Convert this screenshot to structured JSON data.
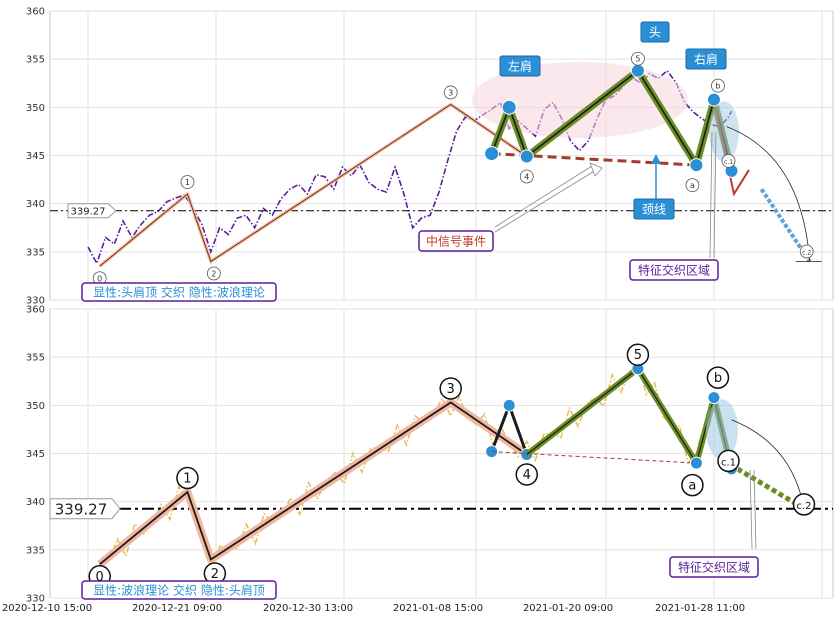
{
  "chart_data": [
    {
      "type": "line",
      "panel": "top",
      "ylim": [
        330,
        360
      ],
      "yticks": [
        330,
        335,
        340,
        345,
        350,
        355,
        360
      ],
      "series": [],
      "price_path": [
        [
          0,
          335.5
        ],
        [
          1.5,
          333.8
        ],
        [
          3,
          336.5
        ],
        [
          4.5,
          335.8
        ],
        [
          6,
          338.2
        ],
        [
          7.5,
          336.5
        ],
        [
          9,
          337.8
        ],
        [
          10.5,
          338.8
        ],
        [
          12,
          339.2
        ],
        [
          13.5,
          340.2
        ],
        [
          15,
          340.6
        ],
        [
          16.5,
          340.9
        ],
        [
          18,
          339.5
        ],
        [
          19.5,
          337.8
        ],
        [
          21,
          335.0
        ],
        [
          22.5,
          337.5
        ],
        [
          24,
          336.8
        ],
        [
          25.5,
          338.5
        ],
        [
          27,
          338.8
        ],
        [
          28.5,
          337.5
        ],
        [
          30,
          339.5
        ],
        [
          31.5,
          338.8
        ],
        [
          33,
          340.5
        ],
        [
          34.5,
          341.5
        ],
        [
          36,
          342.0
        ],
        [
          37.5,
          341.0
        ],
        [
          39,
          343.0
        ],
        [
          40.5,
          342.8
        ],
        [
          42,
          341.5
        ],
        [
          43.5,
          343.8
        ],
        [
          45,
          342.9
        ],
        [
          46.5,
          344.0
        ],
        [
          48,
          342.2
        ],
        [
          49.5,
          341.5
        ],
        [
          51,
          341.2
        ],
        [
          52.5,
          343.8
        ],
        [
          54,
          341.0
        ],
        [
          55.5,
          337.5
        ],
        [
          57,
          338.5
        ],
        [
          58.5,
          338.8
        ],
        [
          60,
          341.2
        ],
        [
          61.5,
          344.5
        ],
        [
          63,
          347.5
        ],
        [
          64.5,
          349.0
        ],
        [
          66,
          348.6
        ],
        [
          67.5,
          349.2
        ],
        [
          69,
          349.8
        ],
        [
          70.5,
          350.5
        ],
        [
          72,
          347.8
        ],
        [
          73.5,
          348.6
        ],
        [
          75,
          347.8
        ],
        [
          76.5,
          347.0
        ],
        [
          78,
          349.8
        ],
        [
          79.5,
          350.5
        ],
        [
          81,
          348.8
        ],
        [
          82.5,
          346.5
        ],
        [
          84,
          345.5
        ],
        [
          85.5,
          346.5
        ],
        [
          87,
          348.8
        ],
        [
          88.5,
          350.8
        ],
        [
          90,
          351.2
        ],
        [
          91.5,
          352.2
        ],
        [
          93,
          353.1
        ],
        [
          94.5,
          352.5
        ],
        [
          96,
          353.5
        ],
        [
          97.5,
          353.0
        ],
        [
          99,
          353.8
        ],
        [
          100.5,
          352.6
        ],
        [
          102,
          350.5
        ],
        [
          103.5,
          349.5
        ],
        [
          105,
          348.8
        ],
        [
          106.5,
          348.2
        ],
        [
          108,
          348.0
        ],
        [
          109.5,
          349.0
        ],
        [
          110,
          349.6
        ]
      ],
      "wave_labels": [
        "0",
        "1",
        "2",
        "3",
        "4",
        "5",
        "a",
        "b",
        "c.1",
        "c.2"
      ],
      "waves": [
        {
          "label": "0",
          "x": 2,
          "y": 333.5
        },
        {
          "label": "1",
          "x": 17,
          "y": 341.0
        },
        {
          "label": "2",
          "x": 21,
          "y": 334.0
        },
        {
          "label": "3",
          "x": 62,
          "y": 350.3
        },
        {
          "label": "4",
          "x": 75,
          "y": 344.9
        },
        {
          "label": "5",
          "x": 94,
          "y": 353.8
        },
        {
          "label": "a",
          "x": 104,
          "y": 344.0
        },
        {
          "label": "b",
          "x": 107,
          "y": 350.8
        },
        {
          "label": "c.1",
          "x": 110,
          "y": 343.4
        },
        {
          "label": "c.2",
          "x": 122,
          "y": 334.0
        }
      ],
      "head_shoulders": {
        "points": [
          [
            69,
            345.2
          ],
          [
            72,
            350.0
          ],
          [
            75,
            344.9
          ],
          [
            94,
            353.8
          ],
          [
            104,
            344.0
          ],
          [
            107,
            350.8
          ],
          [
            110,
            343.4
          ]
        ],
        "neckline": [
          [
            69,
            345.2
          ],
          [
            104,
            344.0
          ]
        ]
      },
      "horizontal_level": 339.27,
      "level_label": "339.27",
      "labels": {
        "left_shoulder": "左肩",
        "head": "头",
        "right_shoulder": "右肩",
        "neckline": "颈线",
        "event": "中信号事件",
        "zone": "特征交织区域",
        "footer": "显性:头肩顶 交织 隐性:波浪理论"
      }
    },
    {
      "type": "line",
      "panel": "bottom",
      "ylim": [
        330,
        360
      ],
      "yticks": [
        330,
        335,
        340,
        345,
        350,
        355,
        360
      ],
      "xticks": [
        "2020-12-10 15:00",
        "2020-12-21 09:00",
        "2020-12-30 13:00",
        "2021-01-08 15:00",
        "2021-01-20 09:00",
        "2021-01-28 11:00"
      ],
      "series": [],
      "waves": [
        {
          "label": "0",
          "x": 2,
          "y": 333.5
        },
        {
          "label": "1",
          "x": 17,
          "y": 341.0
        },
        {
          "label": "2",
          "x": 21,
          "y": 334.0
        },
        {
          "label": "3",
          "x": 62,
          "y": 350.3
        },
        {
          "label": "4",
          "x": 75,
          "y": 344.9
        },
        {
          "label": "5",
          "x": 94,
          "y": 353.8
        },
        {
          "label": "a",
          "x": 104,
          "y": 344.0
        },
        {
          "label": "b",
          "x": 107,
          "y": 350.8
        },
        {
          "label": "c.1",
          "x": 110,
          "y": 343.4
        },
        {
          "label": "c.2",
          "x": 120,
          "y": 339.3
        }
      ],
      "head_shoulders": {
        "points": [
          [
            69,
            345.2
          ],
          [
            72,
            350.0
          ],
          [
            75,
            344.9
          ]
        ],
        "neckline": [
          [
            69,
            345.2
          ],
          [
            104,
            344.0
          ]
        ]
      },
      "horizontal_level": 339.27,
      "level_label": "339.27",
      "labels": {
        "zone": "特征交织区域",
        "footer": "显性:波浪理论 交织 隐性:头肩顶"
      }
    }
  ]
}
